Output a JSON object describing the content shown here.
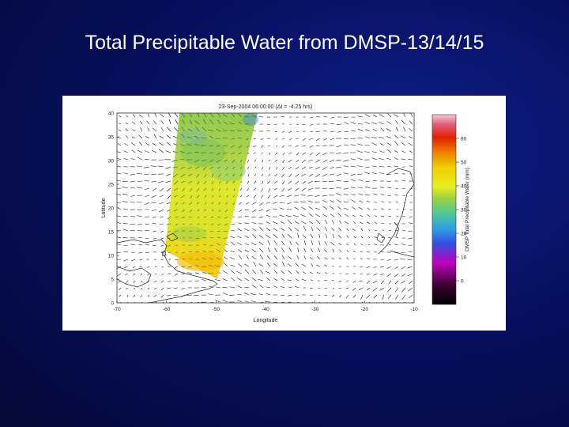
{
  "slide": {
    "title": "Total Precipitable Water from DMSP-13/14/15"
  },
  "chart_data": {
    "type": "heatmap",
    "title": "23-Sep-2004 06:00:00 (Δt = -4.25 hrs)",
    "xlabel": "Longitude",
    "ylabel": "Latitude",
    "xlim": [
      -70,
      -10
    ],
    "ylim": [
      0,
      40
    ],
    "x_ticks": [
      "-70",
      "-60",
      "-50",
      "-40",
      "-30",
      "-20",
      "-10"
    ],
    "y_ticks": [
      "40",
      "35",
      "30",
      "25",
      "20",
      "15",
      "10",
      "5",
      "0"
    ],
    "colorbar": {
      "label": "DMSP Total Precipitable Water (mm)",
      "range": [
        -10,
        70
      ],
      "ticks": [
        "60",
        "50",
        "40",
        "30",
        "20",
        "10",
        "0"
      ]
    },
    "overlay": "wind vectors",
    "swath_fill": {
      "low": "#9ad040",
      "mid": "#e8e820",
      "high": "#f5c800"
    },
    "swath_estimates": [
      {
        "lon": -58,
        "lat": 38,
        "tpw": 30
      },
      {
        "lon": -55,
        "lat": 33,
        "tpw": 38
      },
      {
        "lon": -57,
        "lat": 22,
        "tpw": 48
      },
      {
        "lon": -60,
        "lat": 16,
        "tpw": 40
      },
      {
        "lon": -55,
        "lat": 11,
        "tpw": 55
      }
    ]
  }
}
